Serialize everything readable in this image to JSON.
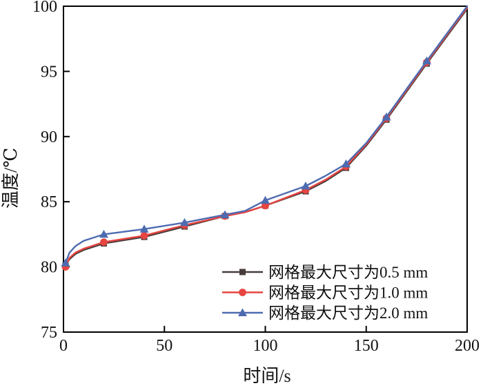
{
  "figure": {
    "background_color": "#ffffff",
    "axis_color": "#000000",
    "text_color": "#111111"
  },
  "chart_data": {
    "type": "line",
    "title": "",
    "xlabel": "时间/s",
    "ylabel": "温度/℃",
    "xlim": [
      0,
      200
    ],
    "ylim": [
      75,
      100
    ],
    "xticks": [
      0,
      50,
      100,
      150,
      200
    ],
    "yticks": [
      75,
      80,
      85,
      90,
      95,
      100
    ],
    "grid": false,
    "legend_position": "inside-lower-right",
    "x": [
      0,
      1,
      3,
      6,
      10,
      20,
      40,
      60,
      80,
      90,
      100,
      120,
      130,
      140,
      150,
      160,
      180,
      200
    ],
    "marker_x": [
      1,
      20,
      40,
      60,
      80,
      100,
      120,
      140,
      160,
      180
    ],
    "series": [
      {
        "name": "网格最大尺寸为0.5 mm",
        "color": "#463c3b",
        "marker": "square",
        "values": [
          80.0,
          80.1,
          80.6,
          81.0,
          81.3,
          81.8,
          82.3,
          83.1,
          83.9,
          84.2,
          84.7,
          85.8,
          86.6,
          87.6,
          89.3,
          91.3,
          95.6,
          99.8
        ]
      },
      {
        "name": "网格最大尺寸为1.0 mm",
        "color": "#e64541",
        "marker": "circle",
        "values": [
          79.9,
          80.0,
          80.7,
          81.1,
          81.4,
          81.9,
          82.4,
          83.2,
          83.9,
          84.2,
          84.7,
          85.9,
          86.7,
          87.7,
          89.4,
          91.4,
          95.7,
          99.9
        ]
      },
      {
        "name": "网格最大尺寸为2.0 mm",
        "color": "#4d6bb0",
        "marker": "triangle",
        "values": [
          80.1,
          80.3,
          81.1,
          81.6,
          82.0,
          82.5,
          82.9,
          83.4,
          84.0,
          84.3,
          85.1,
          86.2,
          87.0,
          87.9,
          89.5,
          91.5,
          95.8,
          100.0
        ]
      }
    ]
  }
}
